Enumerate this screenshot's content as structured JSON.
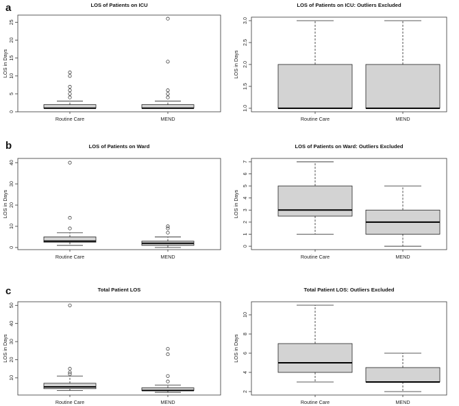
{
  "panel_letters": [
    "a",
    "b",
    "c"
  ],
  "chart_data": [
    {
      "type": "box",
      "panel": "a",
      "title": "LOS of Patients on ICU",
      "ylabel": "LOS in Days",
      "xlabel": "",
      "categories": [
        "Routine Care",
        "MEND"
      ],
      "ylim": [
        0,
        27
      ],
      "yticks": [
        0,
        5,
        10,
        15,
        20,
        25
      ],
      "ytick_labels": [
        "0",
        "5",
        "10",
        "15",
        "20",
        "25"
      ],
      "boxes": [
        {
          "name": "Routine Care",
          "whisker_low": 1,
          "q1": 1,
          "median": 1,
          "q3": 2,
          "whisker_high": 3,
          "outliers": [
            4,
            5,
            6,
            7,
            10,
            11
          ]
        },
        {
          "name": "MEND",
          "whisker_low": 1,
          "q1": 1,
          "median": 1,
          "q3": 2,
          "whisker_high": 3,
          "outliers": [
            4,
            5,
            6,
            14,
            26
          ]
        }
      ]
    },
    {
      "type": "box",
      "panel": "",
      "title": "LOS of Patients on ICU: Outliers Excluded",
      "ylabel": "LOS in Days",
      "xlabel": "",
      "categories": [
        "Routine Care",
        "MEND"
      ],
      "ylim": [
        0.92,
        3.08
      ],
      "yticks": [
        1,
        1.5,
        2,
        2.5,
        3
      ],
      "ytick_labels": [
        "1.0",
        "1.5",
        "2.0",
        "2.5",
        "3.0"
      ],
      "boxes": [
        {
          "name": "Routine Care",
          "whisker_low": 1,
          "q1": 1,
          "median": 1,
          "q3": 2,
          "whisker_high": 3,
          "outliers": []
        },
        {
          "name": "MEND",
          "whisker_low": 1,
          "q1": 1,
          "median": 1,
          "q3": 2,
          "whisker_high": 3,
          "outliers": []
        }
      ]
    },
    {
      "type": "box",
      "panel": "b",
      "title": "LOS of Patients on Ward",
      "ylabel": "LOS in Days",
      "xlabel": "",
      "categories": [
        "Routine Care",
        "MEND"
      ],
      "ylim": [
        -1,
        42
      ],
      "yticks": [
        0,
        10,
        20,
        30,
        40
      ],
      "ytick_labels": [
        "0",
        "10",
        "20",
        "30",
        "40"
      ],
      "boxes": [
        {
          "name": "Routine Care",
          "whisker_low": 1,
          "q1": 2.5,
          "median": 3,
          "q3": 5,
          "whisker_high": 7,
          "outliers": [
            9,
            14,
            40
          ]
        },
        {
          "name": "MEND",
          "whisker_low": 0,
          "q1": 1,
          "median": 2,
          "q3": 3,
          "whisker_high": 5,
          "outliers": [
            7,
            9,
            10
          ]
        }
      ]
    },
    {
      "type": "box",
      "panel": "",
      "title": "LOS of Patients on Ward: Outliers Excluded",
      "ylabel": "LOS in Days",
      "xlabel": "",
      "categories": [
        "Routine Care",
        "MEND"
      ],
      "ylim": [
        -0.28,
        7.28
      ],
      "yticks": [
        0,
        1,
        2,
        3,
        4,
        5,
        6,
        7
      ],
      "ytick_labels": [
        "0",
        "1",
        "2",
        "3",
        "4",
        "5",
        "6",
        "7"
      ],
      "boxes": [
        {
          "name": "Routine Care",
          "whisker_low": 1,
          "q1": 2.5,
          "median": 3,
          "q3": 5,
          "whisker_high": 7,
          "outliers": []
        },
        {
          "name": "MEND",
          "whisker_low": 0,
          "q1": 1,
          "median": 2,
          "q3": 3,
          "whisker_high": 5,
          "outliers": []
        }
      ]
    },
    {
      "type": "box",
      "panel": "c",
      "title": "Total Patient LOS",
      "ylabel": "LOS in Days",
      "xlabel": "",
      "categories": [
        "Routine Care",
        "MEND"
      ],
      "ylim": [
        0.5,
        52
      ],
      "yticks": [
        10,
        20,
        30,
        40,
        50
      ],
      "ytick_labels": [
        "10",
        "20",
        "30",
        "40",
        "50"
      ],
      "boxes": [
        {
          "name": "Routine Care",
          "whisker_low": 3,
          "q1": 4,
          "median": 5,
          "q3": 7,
          "whisker_high": 11,
          "outliers": [
            12,
            13,
            15,
            50
          ]
        },
        {
          "name": "MEND",
          "whisker_low": 2,
          "q1": 3,
          "median": 3,
          "q3": 4.5,
          "whisker_high": 6,
          "outliers": [
            8,
            11,
            23,
            26
          ]
        }
      ]
    },
    {
      "type": "box",
      "panel": "",
      "title": "Total Patient LOS: Outliers Excluded",
      "ylabel": "LOS in Days",
      "xlabel": "",
      "categories": [
        "Routine Care",
        "MEND"
      ],
      "ylim": [
        1.64,
        11.36
      ],
      "yticks": [
        2,
        4,
        6,
        8,
        10
      ],
      "ytick_labels": [
        "2",
        "4",
        "6",
        "8",
        "10"
      ],
      "boxes": [
        {
          "name": "Routine Care",
          "whisker_low": 3,
          "q1": 4,
          "median": 5,
          "q3": 7,
          "whisker_high": 11,
          "outliers": []
        },
        {
          "name": "MEND",
          "whisker_low": 2,
          "q1": 3,
          "median": 3,
          "q3": 4.5,
          "whisker_high": 6,
          "outliers": []
        }
      ]
    }
  ],
  "colors": {
    "box_fill": "#d3d3d3",
    "line": "#222222",
    "frame": "#333333",
    "background": "#ffffff"
  }
}
